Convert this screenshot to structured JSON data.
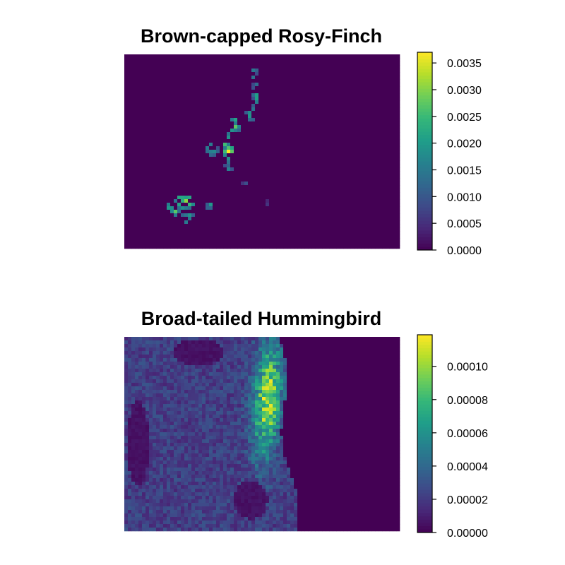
{
  "chart_data": [
    {
      "type": "heatmap",
      "title": "Brown-capped Rosy-Finch",
      "xlabel": "",
      "ylabel": "",
      "colormap": "viridis",
      "colorbar": {
        "range": [
          0,
          0.0037
        ],
        "ticks": [
          0.0,
          0.0005,
          0.001,
          0.0015,
          0.002,
          0.0025,
          0.003,
          0.0035
        ],
        "tick_labels": [
          "0.0000",
          "0.0005",
          "0.0010",
          "0.0015",
          "0.0020",
          "0.0025",
          "0.0030",
          "0.0035"
        ]
      },
      "background_value": 0.0,
      "hotspots": [
        {
          "u": 0.47,
          "v": 0.1,
          "ru": 0.014,
          "rv": 0.06,
          "value": 0.0018
        },
        {
          "u": 0.48,
          "v": 0.2,
          "ru": 0.014,
          "rv": 0.06,
          "value": 0.0022
        },
        {
          "u": 0.46,
          "v": 0.3,
          "ru": 0.018,
          "rv": 0.05,
          "value": 0.002
        },
        {
          "u": 0.4,
          "v": 0.37,
          "ru": 0.022,
          "rv": 0.05,
          "value": 0.0024
        },
        {
          "u": 0.37,
          "v": 0.44,
          "ru": 0.018,
          "rv": 0.04,
          "value": 0.003
        },
        {
          "u": 0.38,
          "v": 0.5,
          "ru": 0.02,
          "rv": 0.04,
          "value": 0.0033
        },
        {
          "u": 0.32,
          "v": 0.49,
          "ru": 0.025,
          "rv": 0.03,
          "value": 0.0022
        },
        {
          "u": 0.38,
          "v": 0.58,
          "ru": 0.015,
          "rv": 0.04,
          "value": 0.0016
        },
        {
          "u": 0.44,
          "v": 0.66,
          "ru": 0.012,
          "rv": 0.03,
          "value": 0.001
        },
        {
          "u": 0.22,
          "v": 0.76,
          "ru": 0.035,
          "rv": 0.04,
          "value": 0.003
        },
        {
          "u": 0.18,
          "v": 0.8,
          "ru": 0.03,
          "rv": 0.04,
          "value": 0.0025
        },
        {
          "u": 0.23,
          "v": 0.84,
          "ru": 0.025,
          "rv": 0.03,
          "value": 0.002
        },
        {
          "u": 0.31,
          "v": 0.78,
          "ru": 0.012,
          "rv": 0.02,
          "value": 0.0022
        },
        {
          "u": 0.52,
          "v": 0.76,
          "ru": 0.01,
          "rv": 0.02,
          "value": 0.0006
        }
      ]
    },
    {
      "type": "heatmap",
      "title": "Broad-tailed Hummingbird",
      "xlabel": "",
      "ylabel": "",
      "colormap": "viridis",
      "colorbar": {
        "range": [
          0,
          0.000119
        ],
        "ticks": [
          0.0,
          2e-05,
          4e-05,
          6e-05,
          8e-05,
          0.0001
        ],
        "tick_labels": [
          "0.00000",
          "0.00002",
          "0.00004",
          "0.00006",
          "0.00008",
          "0.00010"
        ]
      },
      "east_plains_value": 0.0,
      "west_base_value": 2.2e-05,
      "peak_value": 0.000112,
      "front_range_peak_position": {
        "u": 0.52,
        "v": 0.32
      },
      "low_areas": [
        {
          "u": 0.46,
          "v": 0.84,
          "ru": 0.06,
          "rv": 0.1
        },
        {
          "u": 0.27,
          "v": 0.08,
          "ru": 0.09,
          "rv": 0.07
        },
        {
          "u": 0.05,
          "v": 0.55,
          "ru": 0.04,
          "rv": 0.22
        }
      ]
    }
  ]
}
